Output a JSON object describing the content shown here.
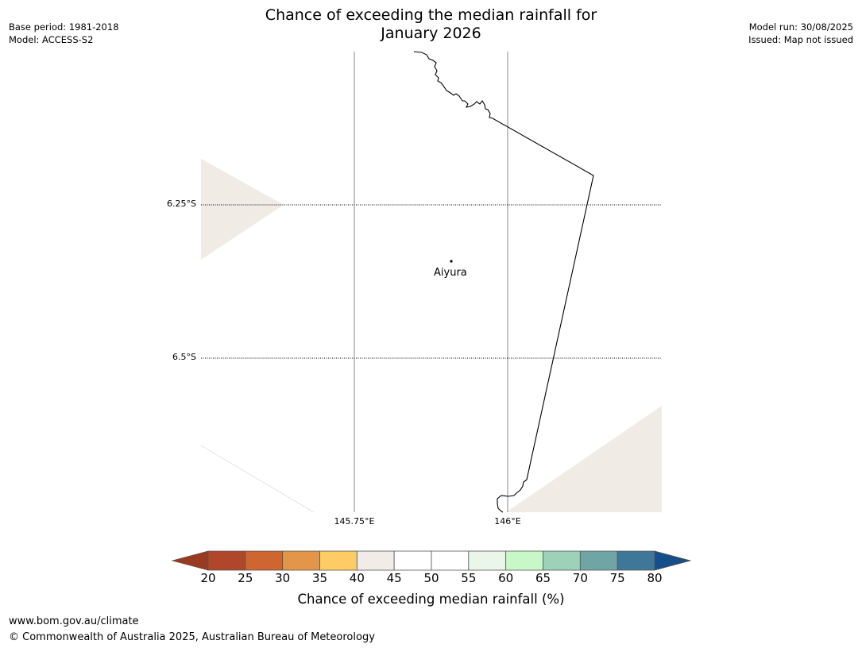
{
  "title_line1": "Chance of exceeding the median rainfall for",
  "title_line2": "January 2026",
  "meta": {
    "base_period": "Base period: 1981-2018",
    "model": "Model: ACCESS-S2",
    "model_run": "Model run: 30/08/2025",
    "issued": "Issued: Map not issued"
  },
  "map": {
    "lat_labels": [
      "6.25°S",
      "6.5°S"
    ],
    "lon_labels": [
      "145.75°E",
      "146°E"
    ],
    "place": {
      "name": "Aiyura",
      "lat": -6.34,
      "lon": 145.905
    },
    "category_colors": {
      "35-40": "#ffcc66",
      "40-45": "#f0ebe4",
      "45-55": "#ffffff"
    }
  },
  "colorbar": {
    "title": "Chance of exceeding median rainfall (%)",
    "ticks": [
      "20",
      "25",
      "30",
      "35",
      "40",
      "45",
      "50",
      "55",
      "60",
      "65",
      "70",
      "75",
      "80"
    ],
    "under_color": "#9a3a20",
    "over_color": "#154f8a",
    "colors": [
      "#b0472a",
      "#cf6531",
      "#e3964a",
      "#fecb65",
      "#f1ece5",
      "#ffffff",
      "#ffffff",
      "#e9f6e9",
      "#c9f8c8",
      "#9dd1b8",
      "#6fa5a5",
      "#3f7798"
    ]
  },
  "footer": {
    "url": "www.bom.gov.au/climate",
    "copyright": "© Commonwealth of Australia 2025, Australian Bureau of Meteorology"
  }
}
